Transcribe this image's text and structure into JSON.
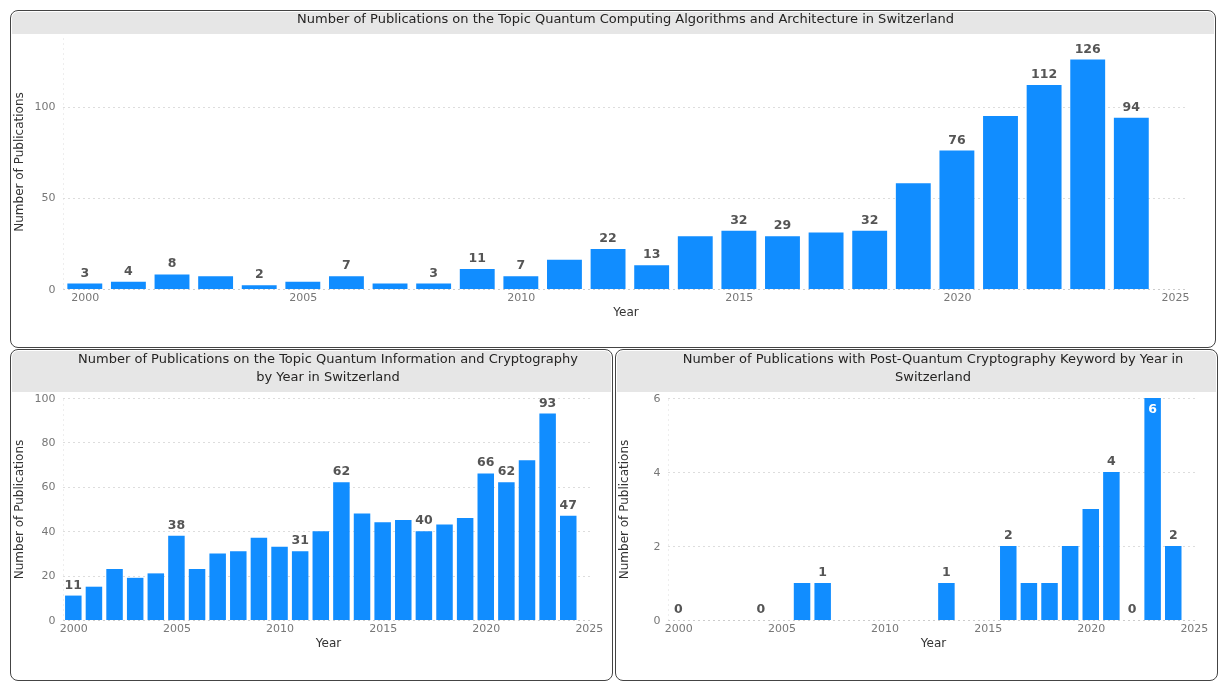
{
  "chart_data": [
    {
      "type": "bar",
      "title": "Number of Publications on the Topic Quantum Computing Algorithms and Architecture in Switzerland",
      "xlabel": "Year",
      "ylabel": "Number of Publications",
      "color": "#118dff",
      "x": [
        2000,
        2001,
        2002,
        2003,
        2004,
        2005,
        2006,
        2007,
        2008,
        2009,
        2010,
        2011,
        2012,
        2013,
        2014,
        2015,
        2016,
        2017,
        2018,
        2019,
        2020,
        2021,
        2022,
        2023,
        2024
      ],
      "values": [
        3,
        4,
        8,
        7,
        2,
        4,
        7,
        3,
        3,
        11,
        7,
        16,
        22,
        13,
        29,
        32,
        29,
        31,
        32,
        58,
        76,
        95,
        112,
        126,
        94
      ],
      "value_labels": [
        "3",
        "4",
        "8",
        null,
        "2",
        null,
        "7",
        null,
        "3",
        "11",
        "7",
        null,
        "22",
        "13",
        null,
        "32",
        "29",
        null,
        "32",
        null,
        "76",
        null,
        "112",
        "126",
        "94"
      ],
      "xlim": [
        1999.5,
        2025.3
      ],
      "xticks": [
        2000,
        2005,
        2010,
        2015,
        2020,
        2025
      ],
      "ylim": [
        0,
        140
      ],
      "yticks": [
        0,
        50,
        100
      ],
      "grid": "y"
    },
    {
      "type": "bar",
      "title": "Number of Publications on the Topic Quantum Information and Cryptography by Year in Switzerland",
      "xlabel": "Year",
      "ylabel": "Number of Publications",
      "color": "#118dff",
      "x": [
        2000,
        2001,
        2002,
        2003,
        2004,
        2005,
        2006,
        2007,
        2008,
        2009,
        2010,
        2011,
        2012,
        2013,
        2014,
        2015,
        2016,
        2017,
        2018,
        2019,
        2020,
        2021,
        2022,
        2023,
        2024
      ],
      "values": [
        11,
        15,
        23,
        19,
        21,
        38,
        23,
        30,
        31,
        37,
        33,
        31,
        40,
        62,
        48,
        44,
        45,
        40,
        43,
        46,
        66,
        62,
        72,
        93,
        47
      ],
      "value_labels": [
        "11",
        null,
        null,
        null,
        null,
        "38",
        null,
        null,
        null,
        null,
        null,
        "31",
        null,
        "62",
        null,
        null,
        null,
        "40",
        null,
        null,
        "66",
        "62",
        null,
        "93",
        "47"
      ],
      "xlim": [
        1999.5,
        2025.2
      ],
      "xticks": [
        2000,
        2005,
        2010,
        2015,
        2020,
        2025
      ],
      "ylim": [
        0,
        100
      ],
      "yticks": [
        0,
        20,
        40,
        60,
        80,
        100
      ],
      "grid": "y"
    },
    {
      "type": "bar",
      "title": "Number of Publications with Post-Quantum Cryptography Keyword by Year in Switzerland",
      "xlabel": "Year",
      "ylabel": "Number of Publications",
      "color": "#118dff",
      "x": [
        2000,
        2004,
        2006,
        2007,
        2013,
        2016,
        2017,
        2018,
        2019,
        2020,
        2021,
        2022,
        2023,
        2024
      ],
      "values": [
        0,
        0,
        1,
        1,
        1,
        2,
        1,
        1,
        2,
        3,
        4,
        0,
        6,
        2
      ],
      "value_labels": [
        "0",
        "0",
        null,
        "1",
        "1",
        "2",
        null,
        null,
        null,
        null,
        "4",
        "0",
        "6",
        "2"
      ],
      "xlim": [
        1999.5,
        2025.2
      ],
      "xticks": [
        2000,
        2005,
        2010,
        2015,
        2020,
        2025
      ],
      "ylim": [
        0,
        6
      ],
      "yticks": [
        0,
        2,
        4,
        6
      ],
      "grid": "y"
    }
  ]
}
